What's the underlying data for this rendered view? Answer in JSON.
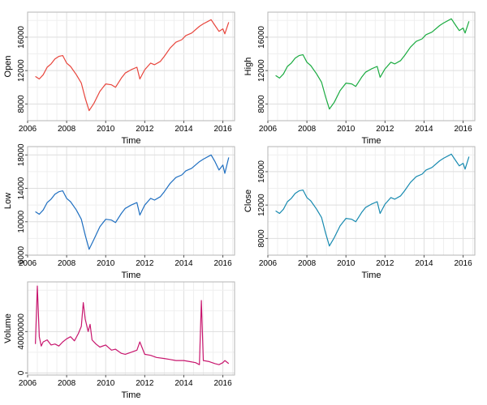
{
  "chart_data": [
    {
      "type": "line",
      "ylabel": "Open",
      "xlabel": "Time",
      "color": "#e8453c",
      "xlim": [
        2006.0,
        2016.6
      ],
      "ylim": [
        6000,
        19000
      ],
      "xticks": [
        2006,
        2008,
        2010,
        2012,
        2014,
        2016
      ],
      "yticks": [
        8000,
        12000,
        16000
      ],
      "grid": true,
      "series": [
        {
          "x": [
            2006.4,
            2006.6,
            2006.8,
            2007.0,
            2007.2,
            2007.4,
            2007.6,
            2007.8,
            2008.0,
            2008.2,
            2008.5,
            2008.75,
            2008.95,
            2009.15,
            2009.4,
            2009.7,
            2010.0,
            2010.3,
            2010.5,
            2010.8,
            2011.0,
            2011.3,
            2011.6,
            2011.75,
            2012.0,
            2012.3,
            2012.5,
            2012.8,
            2013.0,
            2013.3,
            2013.6,
            2013.9,
            2014.1,
            2014.4,
            2014.8,
            2015.0,
            2015.4,
            2015.6,
            2015.8,
            2016.0,
            2016.1,
            2016.3
          ],
          "y": [
            11300,
            11000,
            11500,
            12400,
            12800,
            13400,
            13700,
            13800,
            12900,
            12500,
            11500,
            10500,
            8700,
            7200,
            8100,
            9500,
            10400,
            10300,
            10000,
            11100,
            11700,
            12100,
            12400,
            11000,
            12100,
            12900,
            12700,
            13100,
            13700,
            14700,
            15400,
            15700,
            16200,
            16500,
            17300,
            17600,
            18100,
            17400,
            16700,
            17000,
            16400,
            17800
          ]
        }
      ]
    },
    {
      "type": "line",
      "ylabel": "High",
      "xlabel": "Time",
      "color": "#1aab40",
      "xlim": [
        2006.0,
        2016.6
      ],
      "ylim": [
        6000,
        19000
      ],
      "xticks": [
        2006,
        2008,
        2010,
        2012,
        2014,
        2016
      ],
      "yticks": [
        8000,
        12000,
        16000
      ],
      "grid": true,
      "series": [
        {
          "x": [
            2006.4,
            2006.6,
            2006.8,
            2007.0,
            2007.2,
            2007.4,
            2007.6,
            2007.8,
            2008.0,
            2008.2,
            2008.5,
            2008.75,
            2008.95,
            2009.15,
            2009.4,
            2009.7,
            2010.0,
            2010.3,
            2010.5,
            2010.8,
            2011.0,
            2011.3,
            2011.6,
            2011.75,
            2012.0,
            2012.3,
            2012.5,
            2012.8,
            2013.0,
            2013.3,
            2013.6,
            2013.9,
            2014.1,
            2014.4,
            2014.8,
            2015.0,
            2015.4,
            2015.6,
            2015.8,
            2016.0,
            2016.1,
            2016.3
          ],
          "y": [
            11400,
            11100,
            11600,
            12500,
            12900,
            13500,
            13800,
            13900,
            13000,
            12600,
            11600,
            10600,
            8900,
            7400,
            8200,
            9600,
            10500,
            10400,
            10100,
            11200,
            11800,
            12200,
            12500,
            11200,
            12200,
            13000,
            12800,
            13200,
            13800,
            14800,
            15500,
            15800,
            16300,
            16600,
            17400,
            17700,
            18200,
            17500,
            16800,
            17100,
            16500,
            17900
          ]
        }
      ]
    },
    {
      "type": "line",
      "ylabel": "Low",
      "xlabel": "Time",
      "color": "#1f6fc1",
      "xlim": [
        2006.0,
        2016.6
      ],
      "ylim": [
        6000,
        19000
      ],
      "xticks": [
        2006,
        2008,
        2010,
        2012,
        2014,
        2016
      ],
      "yticks": [
        6000,
        10000,
        14000,
        18000
      ],
      "grid": true,
      "series": [
        {
          "x": [
            2006.4,
            2006.6,
            2006.8,
            2007.0,
            2007.2,
            2007.4,
            2007.6,
            2007.8,
            2008.0,
            2008.2,
            2008.5,
            2008.75,
            2008.95,
            2009.15,
            2009.4,
            2009.7,
            2010.0,
            2010.3,
            2010.5,
            2010.8,
            2011.0,
            2011.3,
            2011.6,
            2011.75,
            2012.0,
            2012.3,
            2012.5,
            2012.8,
            2013.0,
            2013.3,
            2013.6,
            2013.9,
            2014.1,
            2014.4,
            2014.8,
            2015.0,
            2015.4,
            2015.6,
            2015.8,
            2016.0,
            2016.1,
            2016.3
          ],
          "y": [
            11200,
            10900,
            11400,
            12300,
            12700,
            13300,
            13600,
            13700,
            12800,
            12400,
            11400,
            10300,
            8400,
            6700,
            7900,
            9400,
            10300,
            10200,
            9900,
            11000,
            11600,
            12000,
            12300,
            10800,
            12000,
            12800,
            12600,
            13000,
            13600,
            14600,
            15300,
            15600,
            16100,
            16400,
            17200,
            17500,
            18000,
            17200,
            16200,
            16800,
            15800,
            17700
          ]
        }
      ]
    },
    {
      "type": "line",
      "ylabel": "Close",
      "xlabel": "Time",
      "color": "#178ab0",
      "xlim": [
        2006.0,
        2016.6
      ],
      "ylim": [
        6000,
        19000
      ],
      "xticks": [
        2006,
        2008,
        2010,
        2012,
        2014,
        2016
      ],
      "yticks": [
        8000,
        12000,
        16000
      ],
      "grid": true,
      "series": [
        {
          "x": [
            2006.4,
            2006.6,
            2006.8,
            2007.0,
            2007.2,
            2007.4,
            2007.6,
            2007.8,
            2008.0,
            2008.2,
            2008.5,
            2008.75,
            2008.95,
            2009.15,
            2009.4,
            2009.7,
            2010.0,
            2010.3,
            2010.5,
            2010.8,
            2011.0,
            2011.3,
            2011.6,
            2011.75,
            2012.0,
            2012.3,
            2012.5,
            2012.8,
            2013.0,
            2013.3,
            2013.6,
            2013.9,
            2014.1,
            2014.4,
            2014.8,
            2015.0,
            2015.4,
            2015.6,
            2015.8,
            2016.0,
            2016.1,
            2016.3
          ],
          "y": [
            11300,
            11000,
            11500,
            12400,
            12800,
            13400,
            13700,
            13800,
            12900,
            12500,
            11500,
            10500,
            8700,
            7100,
            8100,
            9500,
            10400,
            10300,
            10000,
            11100,
            11700,
            12100,
            12400,
            11000,
            12100,
            12900,
            12700,
            13100,
            13700,
            14700,
            15400,
            15700,
            16200,
            16500,
            17300,
            17600,
            18100,
            17400,
            16700,
            17000,
            16300,
            17800
          ]
        }
      ]
    },
    {
      "type": "line",
      "ylabel": "Volume",
      "xlabel": "Time",
      "color": "#c8166e",
      "xlim": [
        2006.0,
        2016.6
      ],
      "ylim": [
        -2000000,
        88000000
      ],
      "xticks": [
        2006,
        2008,
        2010,
        2012,
        2014,
        2016
      ],
      "yticks": [
        0,
        40000000
      ],
      "grid": true,
      "series": [
        {
          "x": [
            2006.4,
            2006.5,
            2006.6,
            2006.7,
            2006.8,
            2007.0,
            2007.2,
            2007.4,
            2007.6,
            2007.8,
            2008.0,
            2008.2,
            2008.4,
            2008.6,
            2008.75,
            2008.85,
            2008.95,
            2009.1,
            2009.2,
            2009.3,
            2009.5,
            2009.7,
            2010.0,
            2010.3,
            2010.5,
            2010.8,
            2011.0,
            2011.3,
            2011.6,
            2011.75,
            2012.0,
            2012.3,
            2012.6,
            2013.0,
            2013.3,
            2013.6,
            2014.0,
            2014.3,
            2014.6,
            2014.8,
            2014.9,
            2015.0,
            2015.3,
            2015.6,
            2015.8,
            2016.0,
            2016.1,
            2016.3
          ],
          "y": [
            28000000,
            84000000,
            35000000,
            26000000,
            30000000,
            32000000,
            27000000,
            28000000,
            26000000,
            30000000,
            33000000,
            35000000,
            31000000,
            38000000,
            45000000,
            68000000,
            52000000,
            40000000,
            47000000,
            32000000,
            28000000,
            25000000,
            27000000,
            22000000,
            23000000,
            19000000,
            18000000,
            20000000,
            22000000,
            30000000,
            18000000,
            17000000,
            15000000,
            14000000,
            13000000,
            12000000,
            12000000,
            11000000,
            10000000,
            8000000,
            70000000,
            12000000,
            11000000,
            9000000,
            8000000,
            10000000,
            12000000,
            9000000
          ]
        }
      ]
    }
  ]
}
